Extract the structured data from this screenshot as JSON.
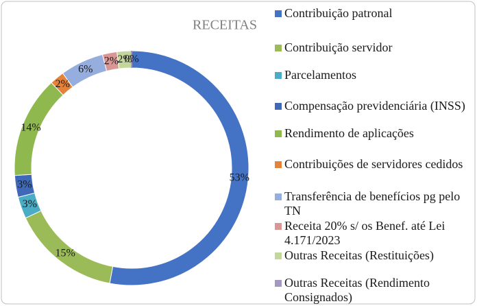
{
  "chart_data": {
    "type": "doughnut",
    "title": "RECEITAS",
    "categories": [
      "Contribuição patronal",
      "Contribuição servidor",
      "Parcelamentos",
      "Compensação previdenciária (INSS)",
      "Rendimento de aplicações",
      "Contribuições de servidores cedidos",
      "Transferência de benefícios pg pelo TN",
      "Receita 20% s/ os Benef. até Lei 4.171/2023",
      "Outras Receitas (Restituições)",
      "Outras Receitas (Rendimento Consignados)"
    ],
    "values": [
      53,
      15,
      3,
      3,
      14,
      2,
      6,
      2,
      2,
      0
    ],
    "value_labels": [
      "53%",
      "15%",
      "3%",
      "3%",
      "14%",
      "2%",
      "6%",
      "2%",
      "2%",
      "0%"
    ],
    "colors": [
      "#4472c4",
      "#9bbb59",
      "#4bacc6",
      "#3f68b8",
      "#8fb94e",
      "#e5823a",
      "#95aedd",
      "#d99694",
      "#c3d69b",
      "#a497c2"
    ],
    "legend": "right"
  }
}
